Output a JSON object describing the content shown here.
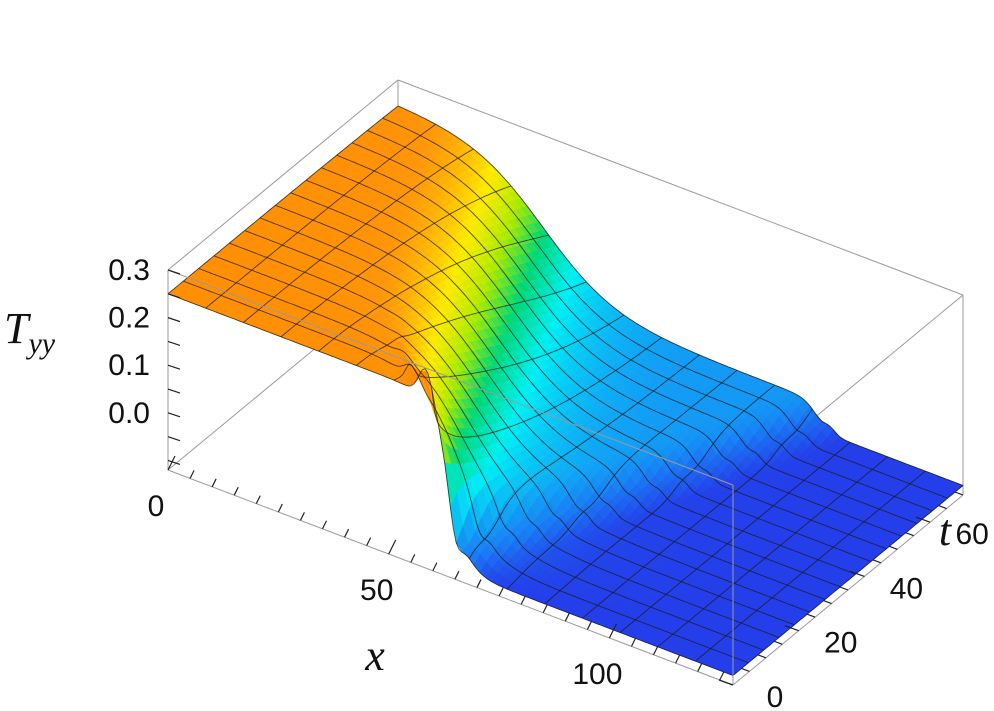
{
  "chart_data": {
    "type": "surface3d",
    "title": "",
    "xlabel": "x",
    "ylabel": "t",
    "zlabel": "T",
    "zlabel_sub": "yy",
    "x_range": [
      0,
      128
    ],
    "t_range": [
      0,
      70
    ],
    "z_range": [
      -0.12,
      0.3
    ],
    "x_ticks": [
      {
        "value": 0,
        "label": "0"
      },
      {
        "value": 50,
        "label": "50"
      },
      {
        "value": 100,
        "label": "100"
      }
    ],
    "t_ticks": [
      {
        "value": 0,
        "label": "0"
      },
      {
        "value": 20,
        "label": "20"
      },
      {
        "value": 40,
        "label": "40"
      },
      {
        "value": 60,
        "label": "60"
      }
    ],
    "z_ticks": [
      {
        "value": 0.0,
        "label": "0.0"
      },
      {
        "value": 0.1,
        "label": "0.1"
      },
      {
        "value": 0.2,
        "label": "0.2"
      },
      {
        "value": 0.3,
        "label": "0.3"
      }
    ],
    "surface": {
      "left_plateau": 0.25,
      "right_plateau": -0.1,
      "front_drop_center": 64,
      "back_drop_center": 33,
      "shock_speed": 0.44,
      "front_drop_width": 2.2,
      "back_drop_width": 8.0,
      "overshoot_peak": 0.3,
      "undershoot_min": -0.14,
      "colormap": "rainbow"
    },
    "grid": true,
    "box": true
  }
}
